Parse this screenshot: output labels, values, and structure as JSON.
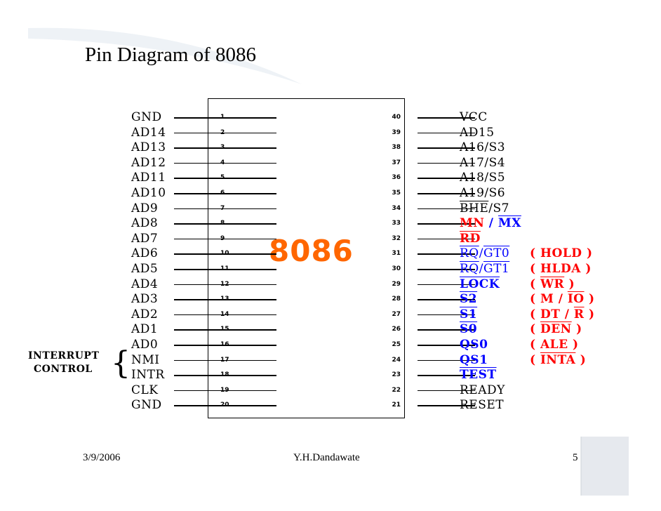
{
  "title": "Pin Diagram of 8086",
  "chip_label": "8086",
  "interrupt_label": {
    "line1": "INTERRUPT",
    "line2": "CONTROL"
  },
  "left_pins": [
    {
      "pin": "1",
      "name": "GND"
    },
    {
      "pin": "2",
      "name": "AD14"
    },
    {
      "pin": "3",
      "name": "AD13"
    },
    {
      "pin": "4",
      "name": "AD12"
    },
    {
      "pin": "5",
      "name": "AD11"
    },
    {
      "pin": "6",
      "name": "AD10"
    },
    {
      "pin": "7",
      "name": "AD9"
    },
    {
      "pin": "8",
      "name": "AD8"
    },
    {
      "pin": "9",
      "name": "AD7"
    },
    {
      "pin": "10",
      "name": "AD6"
    },
    {
      "pin": "11",
      "name": "AD5"
    },
    {
      "pin": "12",
      "name": "AD4"
    },
    {
      "pin": "13",
      "name": "AD3"
    },
    {
      "pin": "14",
      "name": "AD2"
    },
    {
      "pin": "15",
      "name": "AD1"
    },
    {
      "pin": "16",
      "name": "AD0"
    },
    {
      "pin": "17",
      "name": "NMI"
    },
    {
      "pin": "18",
      "name": "INTR"
    },
    {
      "pin": "19",
      "name": "CLK"
    },
    {
      "pin": "20",
      "name": "GND"
    }
  ],
  "right_pins": [
    {
      "pin": "40",
      "name": "VCC"
    },
    {
      "pin": "39",
      "name": "AD15"
    },
    {
      "pin": "38",
      "name": "A16/S3"
    },
    {
      "pin": "37",
      "name": "A17/S4"
    },
    {
      "pin": "36",
      "name": "A18/S5"
    },
    {
      "pin": "35",
      "name": "A19/S6"
    },
    {
      "pin": "34",
      "name_parts": [
        {
          "t": "BHE",
          "ovl": true
        },
        {
          "t": "/S7"
        }
      ]
    },
    {
      "pin": "33",
      "name_parts": [
        {
          "t": "MN",
          "cls": "red bold"
        },
        {
          "t": " / ",
          "cls": "blue bold"
        },
        {
          "t": "MX",
          "ovl": true,
          "cls": "blue bold"
        }
      ]
    },
    {
      "pin": "32",
      "name_parts": [
        {
          "t": "RD",
          "ovl": true,
          "cls": "red bold"
        }
      ]
    },
    {
      "pin": "31",
      "name_parts": [
        {
          "t": "RQ",
          "ovl": true,
          "cls": "blue"
        },
        {
          "t": "/",
          "cls": "blue"
        },
        {
          "t": "GT0",
          "ovl": true,
          "cls": "blue"
        }
      ],
      "alt_parts": [
        {
          "t": "( HOLD )"
        }
      ]
    },
    {
      "pin": "30",
      "name_parts": [
        {
          "t": "RQ",
          "ovl": true,
          "cls": "blue"
        },
        {
          "t": "/",
          "cls": "blue"
        },
        {
          "t": "GT1",
          "ovl": true,
          "cls": "blue"
        }
      ],
      "alt_parts": [
        {
          "t": "( HLDA )"
        }
      ]
    },
    {
      "pin": "29",
      "name_parts": [
        {
          "t": "LOCK",
          "ovl": true,
          "cls": "blue bold"
        }
      ],
      "alt_parts": [
        {
          "t": "( "
        },
        {
          "t": "WR",
          "ovl": true
        },
        {
          "t": " )"
        }
      ]
    },
    {
      "pin": "28",
      "name_parts": [
        {
          "t": "S2",
          "ovl": true,
          "cls": "blue bold"
        }
      ],
      "alt_parts": [
        {
          "t": "( M / "
        },
        {
          "t": "IO",
          "ovl": true
        },
        {
          "t": " )"
        }
      ]
    },
    {
      "pin": "27",
      "name_parts": [
        {
          "t": "S1",
          "ovl": true,
          "cls": "blue bold"
        }
      ],
      "alt_parts": [
        {
          "t": "( DT / "
        },
        {
          "t": "R",
          "ovl": true
        },
        {
          "t": " )"
        }
      ]
    },
    {
      "pin": "26",
      "name_parts": [
        {
          "t": "S0",
          "ovl": true,
          "cls": "blue bold"
        }
      ],
      "alt_parts": [
        {
          "t": "( "
        },
        {
          "t": "DEN",
          "ovl": true
        },
        {
          "t": " )"
        }
      ]
    },
    {
      "pin": "25",
      "name_parts": [
        {
          "t": "QS0",
          "cls": "blue bold"
        }
      ],
      "alt_parts": [
        {
          "t": "( ALE )"
        }
      ]
    },
    {
      "pin": "24",
      "name_parts": [
        {
          "t": "QS1",
          "cls": "blue bold"
        }
      ],
      "alt_parts": [
        {
          "t": "( "
        },
        {
          "t": "INTA",
          "ovl": true
        },
        {
          "t": " )"
        }
      ]
    },
    {
      "pin": "23",
      "name_parts": [
        {
          "t": "TEST",
          "ovl": true,
          "cls": "blue bold"
        }
      ]
    },
    {
      "pin": "22",
      "name": "READY"
    },
    {
      "pin": "21",
      "name": "RESET"
    }
  ],
  "footer": {
    "date": "3/9/2006",
    "author": "Y.H.Dandawate",
    "page": "5"
  },
  "colors": {
    "chip_label": "#ff6600",
    "red": "#ff0000",
    "blue": "#0000ff"
  }
}
